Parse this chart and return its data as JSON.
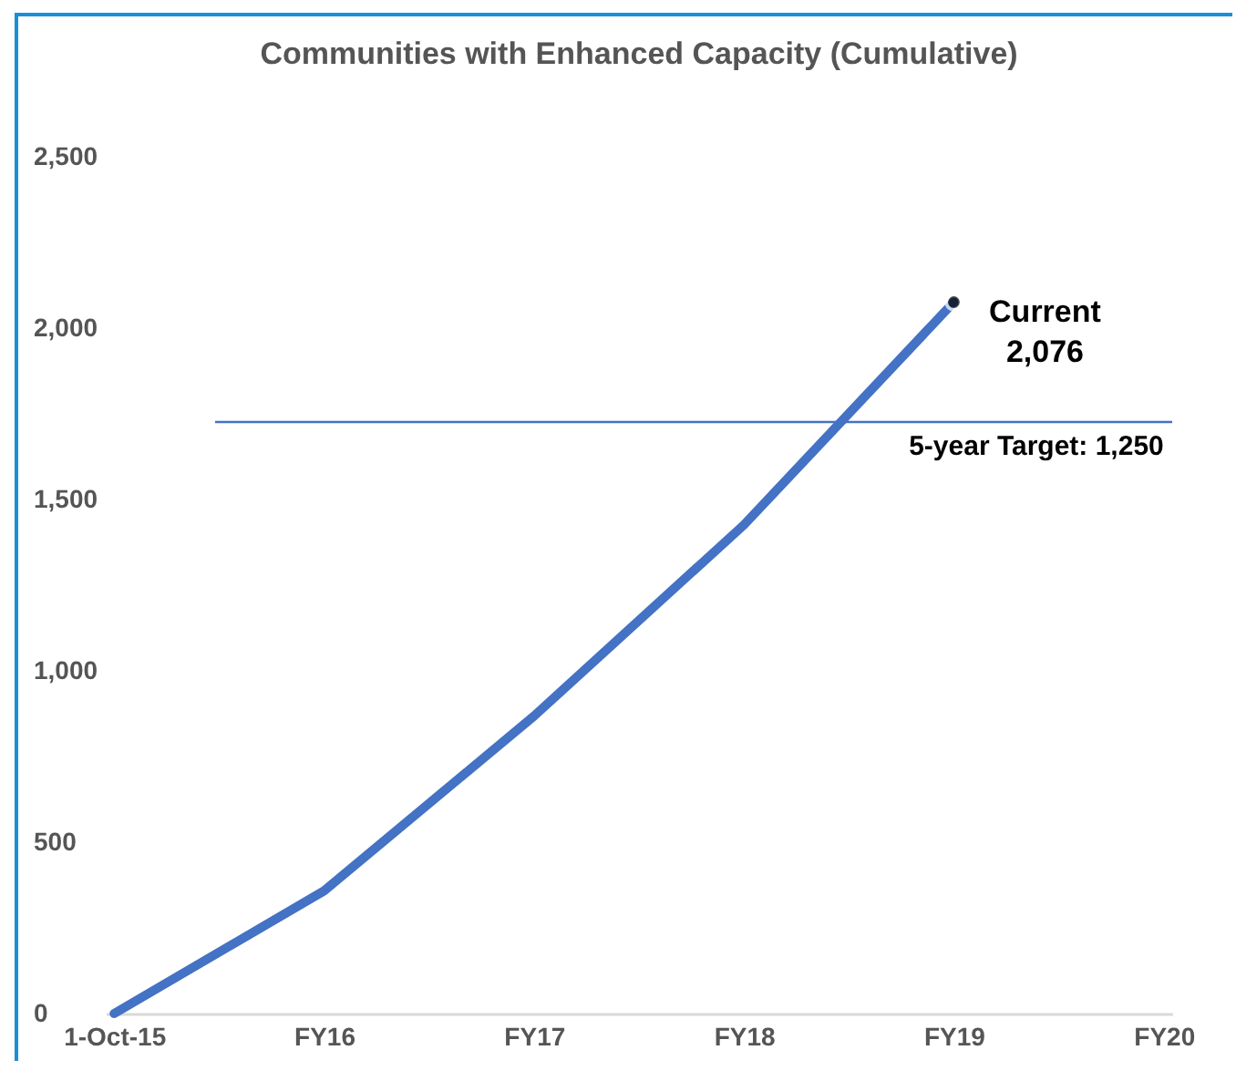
{
  "chart_data": {
    "type": "line",
    "title": "Communities with Enhanced Capacity (Cumulative)",
    "categories": [
      "1-Oct-15",
      "FY16",
      "FY17",
      "FY18",
      "FY19",
      "FY20"
    ],
    "series": [
      {
        "color": "#4472c4",
        "values": [
          0,
          358,
          868,
          1426,
          2076,
          null
        ]
      }
    ],
    "ylim": [
      0,
      2500
    ],
    "yticks": [
      0,
      500,
      {
        "value": 1000,
        "label": "1,000"
      },
      {
        "value": 1500,
        "label": "1,500"
      },
      {
        "value": 2000,
        "label": "2,000"
      },
      {
        "value": 2500,
        "label": "2,500"
      }
    ],
    "grid": false,
    "marker": "none",
    "line_style": "solid",
    "ref_lines": [
      {
        "axis": "y",
        "value": 1726,
        "color": "#4472c4"
      }
    ],
    "annotations": [
      {
        "text": "Current\n2,076",
        "x": "FY19",
        "y": 2076
      },
      {
        "text": "5-year Target: 1,250",
        "x": "FY20",
        "y": 1726
      }
    ]
  }
}
